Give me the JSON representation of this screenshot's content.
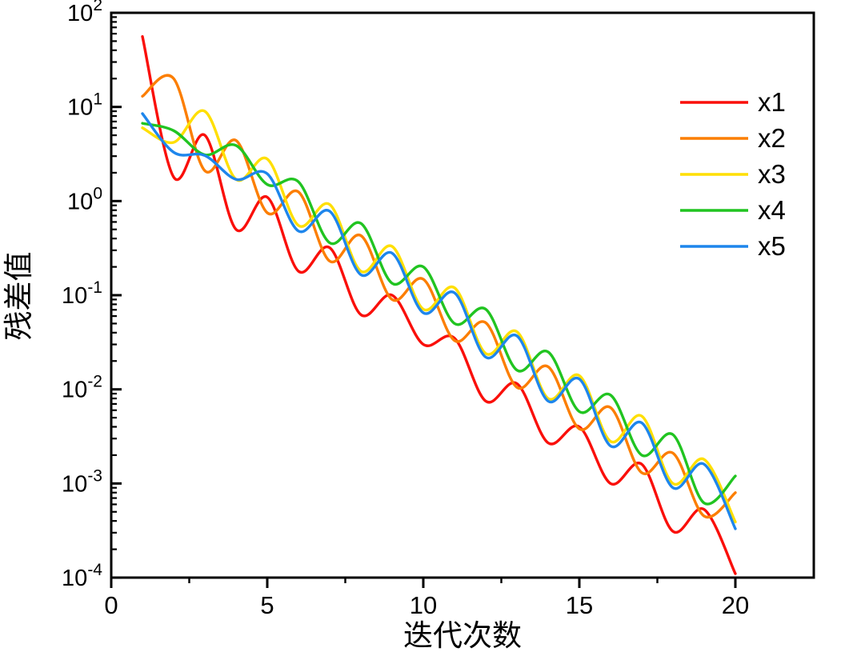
{
  "chart_data": {
    "type": "line",
    "title": "",
    "xlabel": "迭代次数",
    "ylabel": "残差值",
    "grid": false,
    "legend_position": "upper right",
    "x_axis": {
      "min": 0,
      "max": 22.5,
      "major_ticks": [
        0,
        5,
        10,
        15,
        20
      ],
      "minor_ticks": [
        2.5,
        7.5,
        12.5,
        17.5
      ]
    },
    "y_axis": {
      "scale": "log",
      "min": 0.0001,
      "max": 100,
      "decade_exponents": [
        2,
        1,
        0,
        -1,
        -2,
        -3,
        -4
      ]
    },
    "x": [
      1,
      2,
      3,
      4,
      5,
      6,
      7,
      8,
      9,
      10,
      11,
      12,
      13,
      14,
      15,
      16,
      17,
      18,
      19,
      20
    ],
    "series": [
      {
        "name": "x1",
        "color": "#FA0F0A",
        "values": [
          56,
          1.8,
          5.0,
          0.5,
          1.1,
          0.18,
          0.32,
          0.062,
          0.1,
          0.03,
          0.035,
          0.0075,
          0.0115,
          0.0027,
          0.004,
          0.001,
          0.0016,
          0.00031,
          0.00053,
          0.00011
        ]
      },
      {
        "name": "x2",
        "color": "#FC7E00",
        "values": [
          13,
          20,
          2.1,
          4.4,
          0.75,
          1.25,
          0.23,
          0.43,
          0.09,
          0.148,
          0.033,
          0.051,
          0.0105,
          0.0174,
          0.0038,
          0.0064,
          0.0013,
          0.0021,
          0.00045,
          0.0008
        ]
      },
      {
        "name": "x3",
        "color": "#FFDF00",
        "values": [
          6.0,
          4.2,
          9.0,
          1.7,
          2.8,
          0.55,
          0.92,
          0.18,
          0.33,
          0.071,
          0.12,
          0.024,
          0.041,
          0.008,
          0.014,
          0.0028,
          0.0052,
          0.001,
          0.0018,
          0.00039
        ]
      },
      {
        "name": "x4",
        "color": "#21C421",
        "values": [
          6.7,
          5.6,
          3.1,
          3.9,
          1.5,
          1.6,
          0.36,
          0.58,
          0.134,
          0.2,
          0.05,
          0.071,
          0.016,
          0.025,
          0.0058,
          0.0087,
          0.002,
          0.0033,
          0.00062,
          0.0012
        ]
      },
      {
        "name": "x5",
        "color": "#1E86EC",
        "values": [
          8.5,
          3.3,
          3.05,
          1.7,
          1.95,
          0.48,
          0.78,
          0.165,
          0.28,
          0.065,
          0.106,
          0.022,
          0.037,
          0.0075,
          0.0129,
          0.0025,
          0.0044,
          0.0009,
          0.0016,
          0.00033
        ]
      }
    ],
    "colors": {
      "axis": "#000000",
      "background": "#FFFFFF"
    }
  }
}
